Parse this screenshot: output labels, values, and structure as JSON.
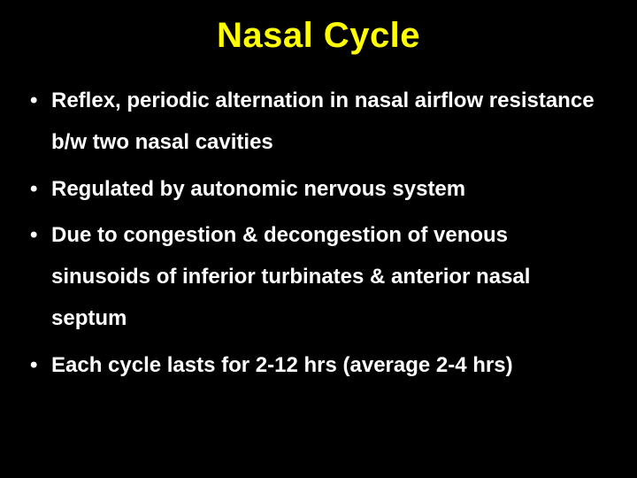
{
  "slide": {
    "title": "Nasal Cycle",
    "title_color": "#ffff00",
    "title_fontsize": 40,
    "background_color": "#000000",
    "text_color": "#ffffff",
    "bullet_fontsize": 24,
    "bullets": [
      "Reflex, periodic alternation in nasal airflow resistance b/w two nasal cavities",
      "Regulated by autonomic nervous system",
      "Due to congestion & decongestion of venous sinusoids of inferior turbinates & anterior nasal septum",
      "Each cycle lasts for 2-12 hrs (average 2-4 hrs)"
    ]
  }
}
